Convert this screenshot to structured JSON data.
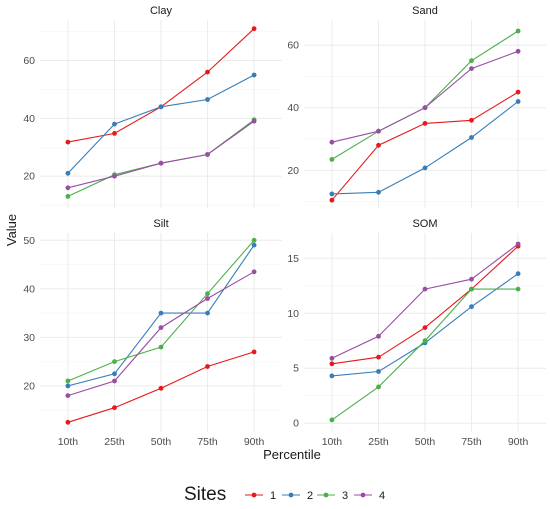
{
  "chart_data": {
    "type": "line",
    "xlabel": "Percentile",
    "ylabel": "Value",
    "categories": [
      "10th",
      "25th",
      "50th",
      "75th",
      "90th"
    ],
    "legend": {
      "title": "Sites",
      "position": "bottom",
      "entries": [
        {
          "label": "1",
          "color": "#e41a1c"
        },
        {
          "label": "2",
          "color": "#377eb8"
        },
        {
          "label": "3",
          "color": "#4daf4a"
        },
        {
          "label": "4",
          "color": "#984ea3"
        }
      ]
    },
    "grid": true,
    "panels": [
      {
        "title": "Clay",
        "ylim": [
          9,
          74
        ],
        "yticks": [
          20,
          40,
          60
        ],
        "series": [
          {
            "site": "1",
            "values": [
              31.8,
              34.8,
              44.0,
              56.0,
              71.0
            ]
          },
          {
            "site": "2",
            "values": [
              21.0,
              38.0,
              44.0,
              46.5,
              55.0
            ]
          },
          {
            "site": "3",
            "values": [
              13.0,
              20.5,
              24.5,
              27.5,
              39.5
            ]
          },
          {
            "site": "4",
            "values": [
              16.0,
              20.0,
              24.5,
              27.5,
              39.0
            ]
          }
        ]
      },
      {
        "title": "Sand",
        "ylim": [
          8,
          68
        ],
        "yticks": [
          20,
          40,
          60
        ],
        "series": [
          {
            "site": "1",
            "values": [
              10.5,
              28.0,
              35.0,
              36.0,
              45.0
            ]
          },
          {
            "site": "2",
            "values": [
              12.5,
              13.0,
              20.8,
              30.5,
              42.0
            ]
          },
          {
            "site": "3",
            "values": [
              23.5,
              32.5,
              40.0,
              55.0,
              64.5
            ]
          },
          {
            "site": "4",
            "values": [
              29.0,
              32.5,
              40.0,
              52.5,
              58.0
            ]
          }
        ]
      },
      {
        "title": "Silt",
        "ylim": [
          10.5,
          51.5
        ],
        "yticks": [
          20,
          30,
          40,
          50
        ],
        "series": [
          {
            "site": "1",
            "values": [
              12.5,
              15.5,
              19.5,
              24.0,
              27.0
            ]
          },
          {
            "site": "2",
            "values": [
              20.0,
              22.5,
              35.0,
              35.0,
              49.0
            ]
          },
          {
            "site": "3",
            "values": [
              21.0,
              25.0,
              28.0,
              39.0,
              50.0
            ]
          },
          {
            "site": "4",
            "values": [
              18.0,
              21.0,
              32.0,
              38.0,
              43.5
            ]
          }
        ]
      },
      {
        "title": "SOM",
        "ylim": [
          -0.8,
          17.3
        ],
        "yticks": [
          0,
          5,
          10,
          15
        ],
        "series": [
          {
            "site": "1",
            "values": [
              5.4,
              6.0,
              8.7,
              12.2,
              16.1
            ]
          },
          {
            "site": "2",
            "values": [
              4.3,
              4.7,
              7.3,
              10.6,
              13.6
            ]
          },
          {
            "site": "3",
            "values": [
              0.3,
              3.3,
              7.5,
              12.2,
              12.2
            ]
          },
          {
            "site": "4",
            "values": [
              5.9,
              7.9,
              12.2,
              13.1,
              16.3
            ]
          }
        ]
      }
    ]
  }
}
